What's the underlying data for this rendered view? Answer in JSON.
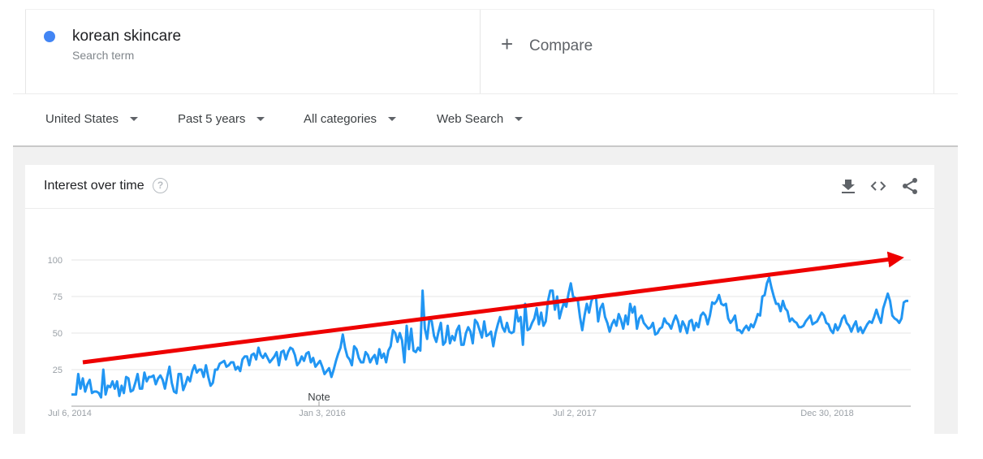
{
  "search_term": {
    "name": "korean skincare",
    "subtitle": "Search term",
    "color": "#4285f4"
  },
  "compare": {
    "label": "Compare"
  },
  "filters": [
    {
      "label": "United States"
    },
    {
      "label": "Past 5 years"
    },
    {
      "label": "All categories"
    },
    {
      "label": "Web Search"
    }
  ],
  "widget": {
    "title": "Interest over time",
    "help_icon": "help-circle-icon",
    "tools": [
      "download-icon",
      "embed-code-icon",
      "share-icon"
    ],
    "note_label": "Note"
  },
  "chart_data": {
    "type": "line",
    "x_ticks": [
      "Jul 6, 2014",
      "Jan 3, 2016",
      "Jul 2, 2017",
      "Dec 30, 2018"
    ],
    "y_ticks": [
      25,
      50,
      75,
      100
    ],
    "ylim": [
      0,
      100
    ],
    "line_color": "#2196f3",
    "series": [
      {
        "values": [
          8,
          8,
          8,
          22,
          12,
          19,
          10,
          15,
          18,
          9,
          10,
          10,
          9,
          6,
          25,
          8,
          14,
          13,
          17,
          12,
          17,
          7,
          14,
          9,
          20,
          19,
          10,
          11,
          16,
          22,
          12,
          12,
          23,
          17,
          20,
          20,
          21,
          15,
          19,
          21,
          18,
          12,
          20,
          27,
          16,
          10,
          9,
          22,
          22,
          11,
          15,
          20,
          17,
          24,
          28,
          23,
          25,
          25,
          20,
          28,
          20,
          14,
          16,
          25,
          25,
          29,
          30,
          31,
          27,
          28,
          30,
          30,
          25,
          27,
          24,
          32,
          34,
          34,
          28,
          35,
          36,
          32,
          40,
          35,
          33,
          36,
          33,
          30,
          32,
          34,
          37,
          28,
          37,
          38,
          32,
          37,
          40,
          39,
          35,
          28,
          30,
          34,
          31,
          36,
          37,
          30,
          33,
          27,
          29,
          31,
          27,
          22,
          24,
          26,
          20,
          25,
          31,
          36,
          40,
          49,
          40,
          34,
          32,
          28,
          41,
          39,
          33,
          30,
          30,
          37,
          35,
          30,
          33,
          35,
          29,
          39,
          33,
          36,
          30,
          38,
          41,
          52,
          50,
          44,
          50,
          45,
          30,
          55,
          39,
          53,
          38,
          37,
          40,
          38,
          79,
          53,
          46,
          60,
          58,
          48,
          44,
          51,
          57,
          42,
          44,
          55,
          43,
          48,
          45,
          52,
          55,
          42,
          42,
          50,
          54,
          51,
          43,
          59,
          57,
          52,
          47,
          58,
          48,
          49,
          51,
          41,
          50,
          56,
          61,
          54,
          51,
          57,
          51,
          50,
          51,
          66,
          58,
          61,
          42,
          70,
          52,
          53,
          57,
          60,
          67,
          56,
          64,
          55,
          58,
          72,
          79,
          79,
          66,
          75,
          60,
          66,
          71,
          68,
          77,
          84,
          75,
          74,
          73,
          61,
          52,
          62,
          70,
          64,
          72,
          75,
          75,
          58,
          67,
          70,
          61,
          57,
          51,
          56,
          59,
          55,
          63,
          59,
          53,
          62,
          56,
          70,
          64,
          68,
          53,
          60,
          62,
          57,
          55,
          53,
          54,
          57,
          49,
          50,
          53,
          54,
          60,
          57,
          56,
          53,
          58,
          62,
          58,
          51,
          58,
          55,
          50,
          58,
          59,
          52,
          57,
          54,
          62,
          64,
          62,
          56,
          62,
          71,
          70,
          72,
          76,
          70,
          69,
          70,
          60,
          57,
          59,
          62,
          52,
          52,
          50,
          53,
          55,
          52,
          56,
          54,
          58,
          63,
          62,
          75,
          76,
          84,
          88,
          81,
          75,
          70,
          70,
          65,
          72,
          67,
          65,
          58,
          60,
          58,
          57,
          54,
          54,
          55,
          58,
          60,
          62,
          56,
          57,
          58,
          61,
          64,
          62,
          57,
          56,
          52,
          50,
          56,
          52,
          55,
          60,
          62,
          57,
          55,
          51,
          55,
          58,
          51,
          54,
          50,
          53,
          56,
          58,
          57,
          61,
          66,
          61,
          57,
          67,
          72,
          77,
          72,
          62,
          60,
          59,
          57,
          60,
          71,
          72,
          72
        ]
      }
    ],
    "trend_arrow": {
      "from_value": 30,
      "to_value": 101,
      "color": "#ee0000"
    }
  }
}
